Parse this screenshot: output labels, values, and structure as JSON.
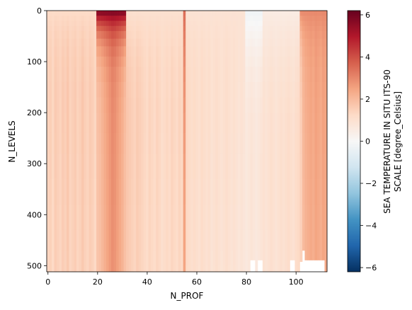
{
  "chart_data": {
    "type": "heatmap",
    "title": "",
    "xlabel": "N_PROF",
    "ylabel": "N_LEVELS",
    "x_range": [
      -0.5,
      112.5
    ],
    "y_range": [
      512,
      0
    ],
    "x_ticks": [
      0,
      20,
      40,
      60,
      80,
      100
    ],
    "y_ticks": [
      0,
      100,
      200,
      300,
      400,
      500
    ],
    "n_prof": 113,
    "n_levels": 512,
    "colormap": "RdBu_r",
    "colorbar": {
      "label_line1": "SEA TEMPERATURE IN SITU ITS-90",
      "label_line2": "SCALE [degree_Celsius]",
      "vmin": -6.2,
      "vmax": 6.2,
      "ticks": [
        -6,
        -4,
        -2,
        0,
        2,
        4,
        6
      ],
      "tick_labels": [
        "−6",
        "−4",
        "−2",
        "0",
        "2",
        "4",
        "6"
      ]
    },
    "profile_base_temperature_celsius": [
      1.5,
      1.6,
      1.4,
      1.7,
      1.6,
      1.5,
      1.7,
      1.6,
      1.8,
      1.5,
      1.6,
      1.7,
      1.5,
      1.6,
      1.8,
      1.6,
      1.5,
      1.7,
      1.6,
      1.4,
      1.9,
      2.0,
      2.2,
      2.4,
      2.6,
      2.8,
      3.0,
      2.9,
      2.7,
      2.5,
      2.3,
      2.0,
      1.8,
      1.7,
      1.6,
      1.5,
      1.7,
      1.6,
      1.5,
      1.4,
      1.3,
      1.5,
      1.4,
      1.3,
      1.5,
      1.4,
      1.2,
      1.3,
      1.4,
      1.3,
      1.5,
      1.4,
      1.3,
      1.5,
      1.4,
      2.6,
      1.4,
      1.3,
      1.2,
      1.3,
      1.2,
      1.1,
      1.3,
      1.2,
      1.1,
      1.2,
      1.0,
      1.1,
      1.2,
      1.1,
      1.0,
      1.1,
      1.2,
      1.1,
      1.0,
      1.1,
      1.0,
      0.9,
      1.0,
      0.9,
      0.8,
      0.9,
      1.0,
      0.9,
      0.8,
      0.9,
      1.0,
      1.1,
      1.0,
      1.1,
      1.2,
      1.1,
      1.0,
      1.1,
      1.2,
      1.1,
      1.2,
      1.3,
      1.2,
      1.1,
      1.3,
      1.4,
      1.6,
      2.1,
      2.3,
      2.4,
      2.5,
      2.4,
      2.6,
      2.5,
      2.4,
      2.6,
      2.5
    ],
    "surface_anomaly_celsius": [
      {
        "from": 0,
        "to": 19,
        "surface": 1.2,
        "depth_level": 60
      },
      {
        "from": 20,
        "to": 31,
        "surface": 6.0,
        "depth_level": 40
      },
      {
        "from": 32,
        "to": 54,
        "surface": 1.0,
        "depth_level": 70
      },
      {
        "from": 55,
        "to": 55,
        "surface": 3.5,
        "depth_level": 120
      },
      {
        "from": 56,
        "to": 79,
        "surface": 0.9,
        "depth_level": 80
      },
      {
        "from": 80,
        "to": 86,
        "surface": -0.3,
        "depth_level": 90
      },
      {
        "from": 87,
        "to": 101,
        "surface": 0.5,
        "depth_level": 110
      },
      {
        "from": 102,
        "to": 112,
        "surface": 3.0,
        "depth_level": 50
      }
    ],
    "missing_bottom_levels": [
      {
        "prof": 82,
        "last_level": 489
      },
      {
        "prof": 83,
        "last_level": 489
      },
      {
        "prof": 85,
        "last_level": 489
      },
      {
        "prof": 86,
        "last_level": 489
      },
      {
        "prof": 98,
        "last_level": 489
      },
      {
        "prof": 99,
        "last_level": 489
      },
      {
        "prof": 102,
        "last_level": 492
      },
      {
        "prof": 103,
        "last_level": 470
      },
      {
        "prof": 104,
        "last_level": 489
      },
      {
        "prof": 105,
        "last_level": 489
      },
      {
        "prof": 106,
        "last_level": 489
      },
      {
        "prof": 107,
        "last_level": 489
      },
      {
        "prof": 108,
        "last_level": 489
      },
      {
        "prof": 109,
        "last_level": 489
      },
      {
        "prof": 110,
        "last_level": 489
      },
      {
        "prof": 111,
        "last_level": 489
      }
    ]
  }
}
